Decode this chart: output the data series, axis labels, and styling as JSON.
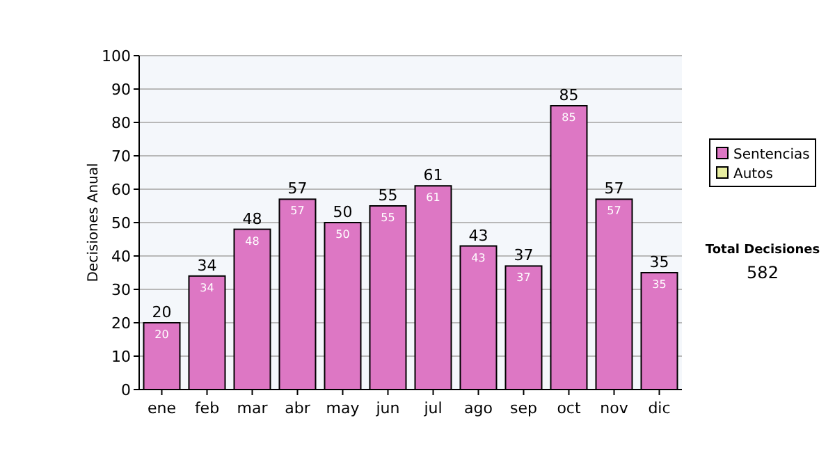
{
  "chart_data": {
    "type": "bar",
    "ylabel": "Decisiones Anual",
    "categories": [
      "ene",
      "feb",
      "mar",
      "abr",
      "may",
      "jun",
      "jul",
      "ago",
      "sep",
      "oct",
      "nov",
      "dic"
    ],
    "series": [
      {
        "name": "Sentencias",
        "color": "#dd77c4",
        "values": [
          20,
          34,
          48,
          57,
          50,
          55,
          61,
          43,
          37,
          85,
          57,
          35
        ]
      },
      {
        "name": "Autos",
        "color": "#e8eea0",
        "values": [
          null,
          null,
          null,
          null,
          null,
          null,
          null,
          null,
          null,
          null,
          null,
          null
        ]
      }
    ],
    "stacked": true,
    "data_labels": true,
    "totals": [
      "20",
      "34",
      "48",
      "57",
      "50",
      "55",
      "61",
      "43",
      "37",
      "85",
      "57",
      "35"
    ],
    "ylim": [
      0,
      100
    ],
    "yticks": [
      0,
      10,
      20,
      30,
      40,
      50,
      60,
      70,
      80,
      90,
      100
    ],
    "grid": "y",
    "legend": "right",
    "annotations": [
      "Total Decisiones",
      "582"
    ]
  }
}
